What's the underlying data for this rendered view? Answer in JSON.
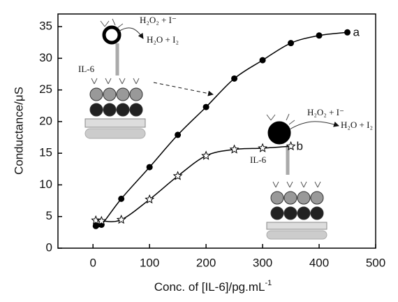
{
  "chart_data": {
    "type": "line",
    "x_label": "Conc. of [IL-6]/pg.mL",
    "x_label_superscript": "-1",
    "y_label": "Conductance/μS",
    "xlim": [
      -62,
      500
    ],
    "xticks": [
      0,
      100,
      200,
      300,
      400,
      500
    ],
    "ylim": [
      0,
      37
    ],
    "yticks": [
      0,
      5,
      10,
      15,
      20,
      25,
      30,
      35
    ],
    "series": [
      {
        "name": "a",
        "color": "#000000",
        "marker": "circle",
        "x": [
          5,
          15,
          50,
          100,
          150,
          200,
          250,
          300,
          350,
          400,
          450
        ],
        "values": [
          3.5,
          3.7,
          7.8,
          12.8,
          17.9,
          22.3,
          26.8,
          29.7,
          32.4,
          33.6,
          34.1
        ]
      },
      {
        "name": "b",
        "color": "#000000",
        "marker": "star",
        "x": [
          5,
          15,
          50,
          100,
          150,
          200,
          250,
          300,
          350
        ],
        "values": [
          4.4,
          4.3,
          4.5,
          7.7,
          11.4,
          14.6,
          15.6,
          15.8,
          16.1
        ]
      }
    ],
    "annotations": [
      "H₂O₂ + I⁻",
      "H₂O + I₂",
      "IL-6",
      "H₂O₂ + I⁻",
      "H₂O + I₂",
      "IL-6"
    ]
  }
}
